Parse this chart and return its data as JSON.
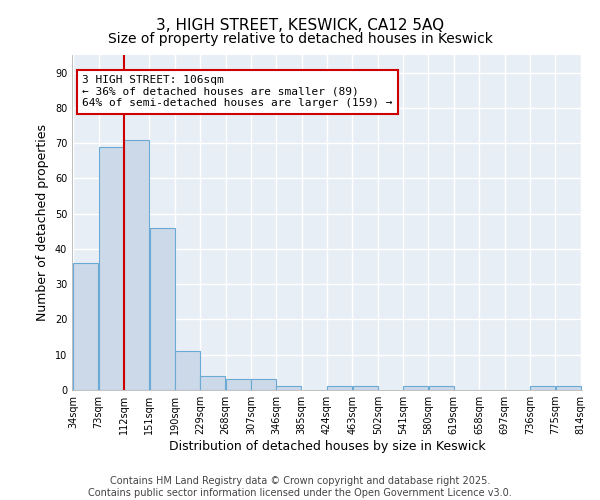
{
  "title": "3, HIGH STREET, KESWICK, CA12 5AQ",
  "subtitle": "Size of property relative to detached houses in Keswick",
  "xlabel": "Distribution of detached houses by size in Keswick",
  "ylabel": "Number of detached properties",
  "bar_left_edges": [
    34,
    73,
    112,
    151,
    190,
    229,
    268,
    307,
    346,
    385,
    424,
    463,
    502,
    541,
    580,
    619,
    658,
    697,
    736,
    775
  ],
  "bar_heights": [
    36,
    69,
    71,
    46,
    11,
    4,
    3,
    3,
    1,
    0,
    1,
    1,
    0,
    1,
    1,
    0,
    0,
    0,
    1,
    1
  ],
  "bin_width": 39,
  "x_tick_labels": [
    "34sqm",
    "73sqm",
    "112sqm",
    "151sqm",
    "190sqm",
    "229sqm",
    "268sqm",
    "307sqm",
    "346sqm",
    "385sqm",
    "424sqm",
    "463sqm",
    "502sqm",
    "541sqm",
    "580sqm",
    "619sqm",
    "658sqm",
    "697sqm",
    "736sqm",
    "775sqm",
    "814sqm"
  ],
  "x_tick_positions": [
    34,
    73,
    112,
    151,
    190,
    229,
    268,
    307,
    346,
    385,
    424,
    463,
    502,
    541,
    580,
    619,
    658,
    697,
    736,
    775,
    814
  ],
  "bar_color": "#ccd9e8",
  "bar_edge_color": "#6aaad4",
  "red_line_x": 112,
  "ylim": [
    0,
    95
  ],
  "yticks": [
    0,
    10,
    20,
    30,
    40,
    50,
    60,
    70,
    80,
    90
  ],
  "annotation_text": "3 HIGH STREET: 106sqm\n← 36% of detached houses are smaller (89)\n64% of semi-detached houses are larger (159) →",
  "annotation_box_color": "#ffffff",
  "annotation_box_edge_color": "#cc0000",
  "footnote": "Contains HM Land Registry data © Crown copyright and database right 2025.\nContains public sector information licensed under the Open Government Licence v3.0.",
  "background_color": "#ffffff",
  "plot_bg_color": "#e8eef5",
  "grid_color": "#ffffff",
  "title_fontsize": 11,
  "subtitle_fontsize": 10,
  "axis_label_fontsize": 9,
  "tick_fontsize": 7,
  "footnote_fontsize": 7,
  "annotation_fontsize": 8
}
